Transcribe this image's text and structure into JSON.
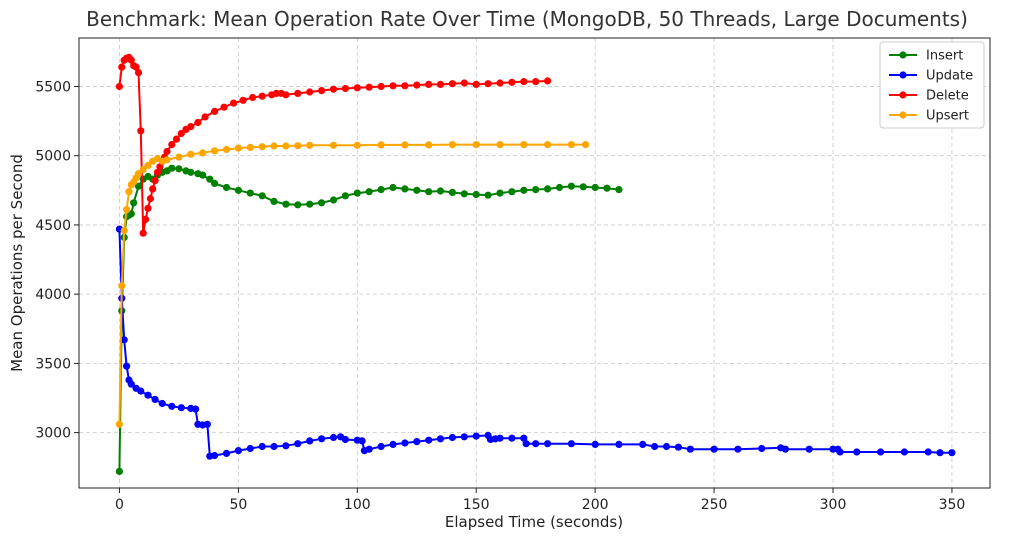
{
  "chart_data": {
    "type": "line",
    "title": "Benchmark: Mean Operation Rate Over Time (MongoDB, 50 Threads, Large Documents)",
    "xlabel": "Elapsed Time (seconds)",
    "ylabel": "Mean Operations per Second",
    "xlim": [
      -17,
      366
    ],
    "ylim": [
      2600,
      5850
    ],
    "xticks": [
      0,
      50,
      100,
      150,
      200,
      250,
      300,
      350
    ],
    "yticks": [
      3000,
      3500,
      4000,
      4500,
      5000,
      5500
    ],
    "grid": true,
    "legend_position": "top-right",
    "series": [
      {
        "name": "Insert",
        "color": "#008000",
        "x": [
          0,
          1,
          2,
          3,
          4,
          5,
          6,
          8,
          10,
          12,
          14,
          16,
          18,
          20,
          22,
          25,
          28,
          30,
          33,
          35,
          38,
          40,
          45,
          50,
          55,
          60,
          65,
          70,
          75,
          80,
          85,
          90,
          95,
          100,
          105,
          110,
          115,
          120,
          125,
          130,
          135,
          140,
          145,
          150,
          155,
          160,
          165,
          170,
          175,
          180,
          185,
          190,
          195,
          200,
          205,
          210
        ],
        "y": [
          2720,
          3880,
          4410,
          4560,
          4570,
          4580,
          4660,
          4780,
          4830,
          4850,
          4830,
          4860,
          4880,
          4890,
          4910,
          4905,
          4890,
          4880,
          4870,
          4860,
          4830,
          4800,
          4770,
          4750,
          4730,
          4710,
          4670,
          4650,
          4645,
          4650,
          4660,
          4680,
          4710,
          4730,
          4740,
          4755,
          4770,
          4760,
          4750,
          4740,
          4745,
          4735,
          4725,
          4720,
          4715,
          4730,
          4740,
          4750,
          4755,
          4760,
          4770,
          4780,
          4775,
          4770,
          4765,
          4755
        ]
      },
      {
        "name": "Update",
        "color": "#0000ff",
        "x": [
          0,
          1,
          2,
          3,
          4,
          5,
          7,
          9,
          12,
          15,
          18,
          22,
          26,
          30,
          32,
          33,
          35,
          37,
          38,
          40,
          45,
          50,
          55,
          60,
          65,
          70,
          75,
          80,
          85,
          90,
          93,
          95,
          100,
          102,
          103,
          105,
          110,
          115,
          120,
          125,
          130,
          135,
          140,
          145,
          150,
          155,
          156,
          158,
          160,
          165,
          170,
          171,
          175,
          180,
          190,
          200,
          210,
          220,
          225,
          230,
          235,
          240,
          250,
          260,
          270,
          278,
          280,
          290,
          300,
          302,
          303,
          310,
          320,
          330,
          340,
          345,
          350
        ],
        "y": [
          4470,
          3970,
          3670,
          3480,
          3380,
          3350,
          3320,
          3300,
          3270,
          3240,
          3210,
          3190,
          3180,
          3175,
          3170,
          3060,
          3055,
          3060,
          2830,
          2835,
          2850,
          2870,
          2885,
          2900,
          2900,
          2905,
          2920,
          2940,
          2955,
          2965,
          2970,
          2950,
          2945,
          2940,
          2870,
          2880,
          2900,
          2915,
          2925,
          2935,
          2945,
          2955,
          2965,
          2970,
          2975,
          2980,
          2950,
          2955,
          2960,
          2960,
          2960,
          2920,
          2920,
          2920,
          2920,
          2915,
          2915,
          2915,
          2900,
          2900,
          2895,
          2880,
          2880,
          2880,
          2885,
          2890,
          2880,
          2880,
          2880,
          2880,
          2860,
          2860,
          2860,
          2860,
          2860,
          2855,
          2855
        ]
      },
      {
        "name": "Delete",
        "color": "#ff0000",
        "x": [
          0,
          1,
          2,
          3,
          4,
          5,
          6,
          7,
          8,
          9,
          10,
          11,
          12,
          13,
          14,
          15,
          16,
          17,
          18,
          19,
          20,
          22,
          24,
          26,
          28,
          30,
          33,
          36,
          40,
          44,
          48,
          52,
          56,
          60,
          64,
          66,
          68,
          70,
          75,
          80,
          85,
          90,
          95,
          100,
          105,
          110,
          115,
          120,
          125,
          130,
          135,
          140,
          145,
          150,
          155,
          160,
          165,
          170,
          175,
          180
        ],
        "y": [
          5500,
          5640,
          5690,
          5705,
          5710,
          5690,
          5650,
          5640,
          5600,
          5180,
          4440,
          4540,
          4620,
          4690,
          4760,
          4820,
          4880,
          4920,
          4960,
          4990,
          5030,
          5080,
          5120,
          5160,
          5190,
          5210,
          5240,
          5280,
          5320,
          5350,
          5380,
          5400,
          5420,
          5430,
          5440,
          5450,
          5450,
          5440,
          5450,
          5460,
          5470,
          5480,
          5485,
          5490,
          5495,
          5500,
          5505,
          5505,
          5510,
          5515,
          5515,
          5520,
          5525,
          5515,
          5520,
          5525,
          5530,
          5535,
          5535,
          5540
        ]
      },
      {
        "name": "Upsert",
        "color": "#ffa500",
        "x": [
          0,
          1,
          2,
          3,
          4,
          5,
          6,
          7,
          8,
          10,
          12,
          14,
          16,
          18,
          20,
          25,
          30,
          35,
          40,
          45,
          50,
          55,
          60,
          65,
          70,
          75,
          80,
          90,
          100,
          110,
          120,
          130,
          140,
          150,
          160,
          170,
          180,
          190,
          196
        ],
        "y": [
          3060,
          4060,
          4460,
          4610,
          4740,
          4790,
          4810,
          4840,
          4870,
          4900,
          4930,
          4960,
          4980,
          4960,
          4970,
          4990,
          5010,
          5020,
          5035,
          5045,
          5055,
          5060,
          5065,
          5070,
          5070,
          5072,
          5075,
          5075,
          5075,
          5078,
          5078,
          5078,
          5080,
          5080,
          5080,
          5080,
          5080,
          5080,
          5080
        ]
      }
    ]
  }
}
